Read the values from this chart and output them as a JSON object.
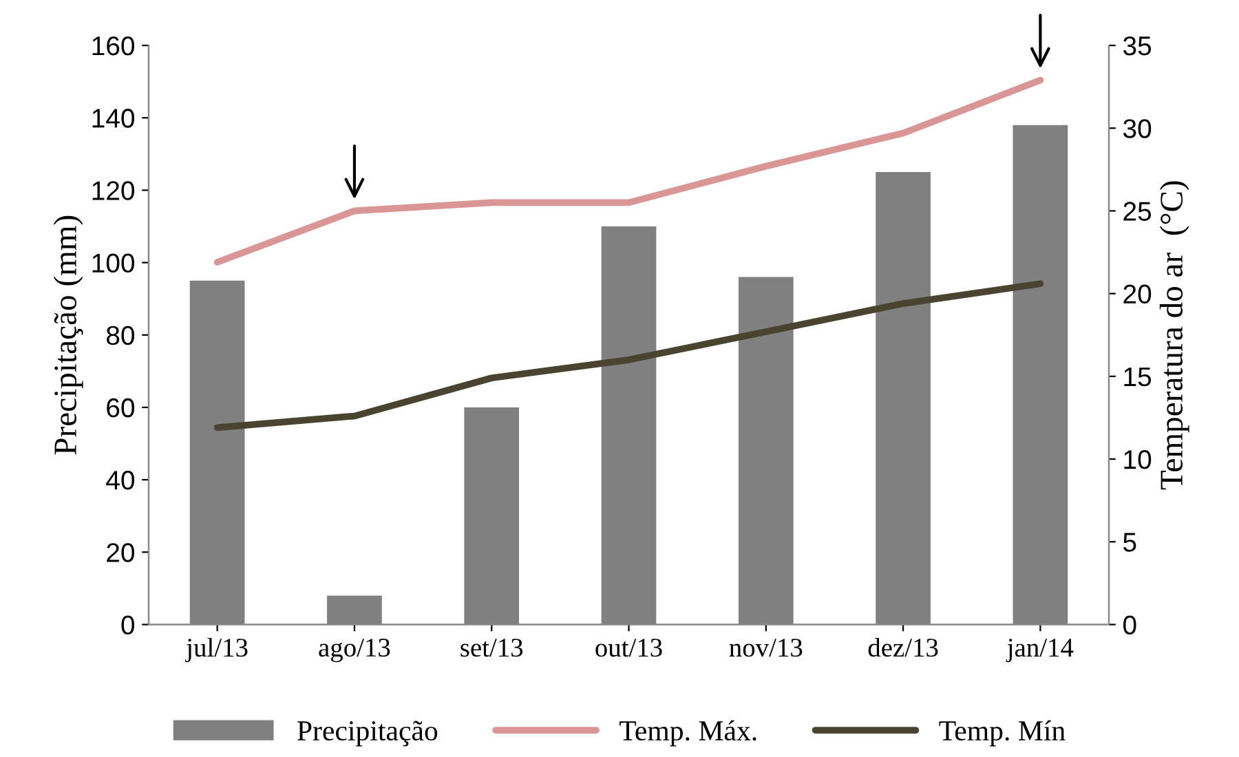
{
  "chart_data": {
    "type": "bar",
    "categories": [
      "jul/13",
      "ago/13",
      "set/13",
      "out/13",
      "nov/13",
      "dez/13",
      "jan/14"
    ],
    "ylabel": "Precipitação (mm)",
    "y2label": "Temperatura do ar  (°C)",
    "series": [
      {
        "name": "Precipitação",
        "color": "#808080",
        "values": [
          95,
          8,
          60,
          110,
          96,
          125,
          138
        ]
      },
      {
        "name": "Temp. Máx.",
        "type": "line",
        "axis": "y2",
        "color": "#d99694",
        "values": [
          21.9,
          25.0,
          25.5,
          25.5,
          27.7,
          29.7,
          32.9
        ]
      },
      {
        "name": "Temp. Mín",
        "type": "line",
        "axis": "y2",
        "color": "#4a4330",
        "values": [
          11.9,
          12.6,
          14.9,
          16.0,
          17.7,
          19.4,
          20.6
        ]
      }
    ],
    "ylim": [
      0,
      160
    ],
    "yticks": [
      0,
      20,
      40,
      60,
      80,
      100,
      120,
      140,
      160
    ],
    "y2lim": [
      0,
      35
    ],
    "y2ticks": [
      0,
      5,
      10,
      15,
      20,
      25,
      30,
      35
    ],
    "grid": false,
    "legend": "bottom",
    "marker": "none",
    "line_style": "solid"
  }
}
